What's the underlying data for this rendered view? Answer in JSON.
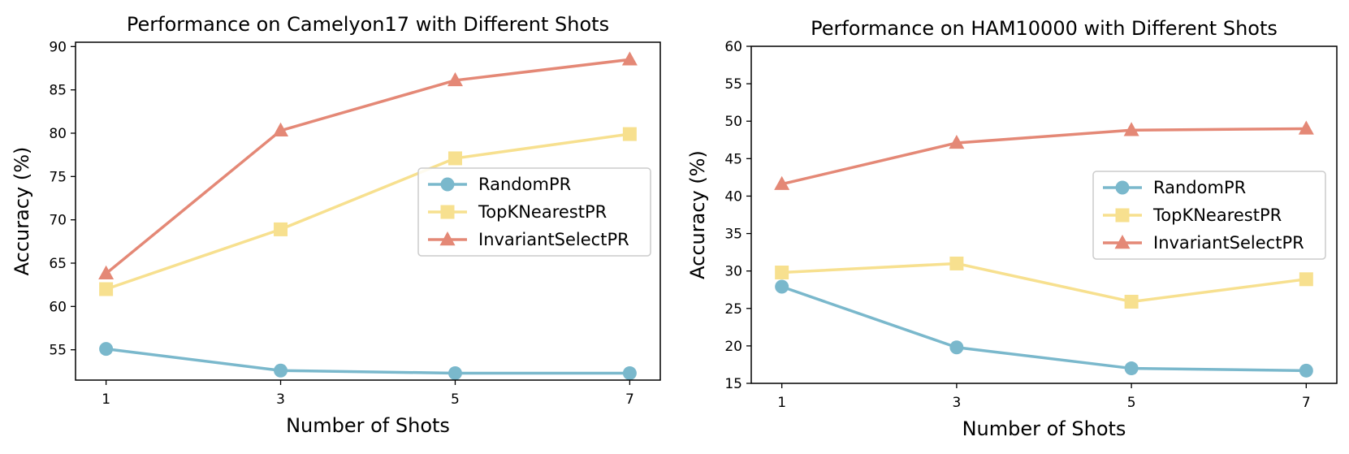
{
  "colors": {
    "random": "#7ab8cc",
    "topk": "#f7e08f",
    "invariant": "#e48876",
    "axis": "#000000",
    "legend_border": "#cccccc"
  },
  "chart_data": [
    {
      "type": "line",
      "title": "Performance on Camelyon17 with Different Shots",
      "xlabel": "Number of Shots",
      "ylabel": "Accuracy (%)",
      "x": [
        1,
        3,
        5,
        7
      ],
      "xlim": [
        0.65,
        7.35
      ],
      "ylim": [
        51.5,
        90.5
      ],
      "yticks": [
        55,
        60,
        65,
        70,
        75,
        80,
        85,
        90
      ],
      "grid": false,
      "legend": "center-right",
      "series": [
        {
          "name": "RandomPR",
          "marker": "circle",
          "color": "#7ab8cc",
          "values": [
            55.1,
            52.6,
            52.3,
            52.3
          ]
        },
        {
          "name": "TopKNearestPR",
          "marker": "square",
          "color": "#f7e08f",
          "values": [
            62.0,
            68.9,
            77.1,
            79.9
          ]
        },
        {
          "name": "InvariantSelectPR",
          "marker": "triangle",
          "color": "#e48876",
          "values": [
            63.8,
            80.3,
            86.1,
            88.5
          ]
        }
      ]
    },
    {
      "type": "line",
      "title": "Performance on HAM10000 with Different Shots",
      "xlabel": "Number of Shots",
      "ylabel": "Accuracy (%)",
      "x": [
        1,
        3,
        5,
        7
      ],
      "xlim": [
        0.65,
        7.35
      ],
      "ylim": [
        15,
        60
      ],
      "yticks": [
        15,
        20,
        25,
        30,
        35,
        40,
        45,
        50,
        55,
        60
      ],
      "grid": false,
      "legend": "center-right",
      "series": [
        {
          "name": "RandomPR",
          "marker": "circle",
          "color": "#7ab8cc",
          "values": [
            27.9,
            19.8,
            17.0,
            16.7
          ]
        },
        {
          "name": "TopKNearestPR",
          "marker": "square",
          "color": "#f7e08f",
          "values": [
            29.8,
            31.0,
            25.9,
            28.9
          ]
        },
        {
          "name": "InvariantSelectPR",
          "marker": "triangle",
          "color": "#e48876",
          "values": [
            41.6,
            47.1,
            48.8,
            49.0
          ]
        }
      ]
    }
  ]
}
